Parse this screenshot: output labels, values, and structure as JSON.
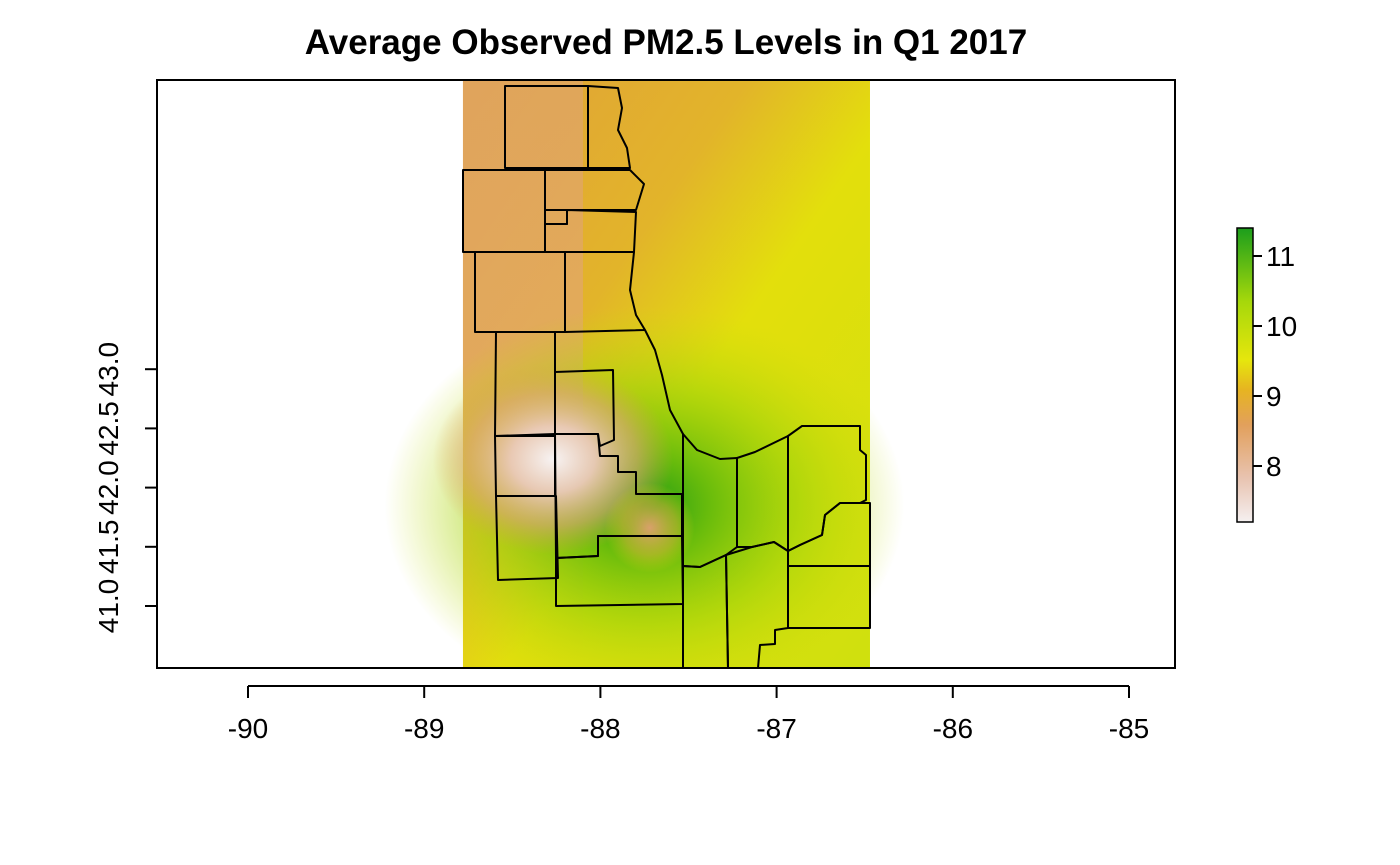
{
  "chart_data": {
    "type": "heatmap",
    "title": "Average Observed PM2.5 Levels in Q1 2017",
    "xlabel": "",
    "ylabel": "",
    "xlim": [
      -90.5,
      -84.75
    ],
    "ylim": [
      40.75,
      43.2
    ],
    "x_ticks": [
      "-90",
      "-89",
      "-88",
      "-87",
      "-86",
      "-85"
    ],
    "x_tick_values": [
      -90,
      -89,
      -88,
      -87,
      -86,
      -85
    ],
    "y_ticks": [
      "41.0",
      "41.5",
      "42.0",
      "42.5",
      "43.0"
    ],
    "y_tick_values": [
      41.0,
      41.5,
      42.0,
      42.5,
      43.0
    ],
    "raster_extent": {
      "lon": [
        -88.78,
        -86.47
      ],
      "lat": [
        40.75,
        43.2
      ]
    },
    "legend": {
      "placement": "right",
      "range": [
        7.2,
        11.4
      ],
      "ticks": [
        "8",
        "9",
        "10",
        "11"
      ],
      "tick_values": [
        8,
        9,
        10,
        11
      ],
      "colors": [
        "#f2f2f2",
        "#e8c3b0",
        "#e2a05c",
        "#e6b421",
        "#e6e60d",
        "#a6d80b",
        "#1c9e1c"
      ]
    },
    "grid": false,
    "hotspots": [
      {
        "kind": "max",
        "lon": -87.75,
        "lat": 41.85,
        "value": 11.3
      },
      {
        "kind": "min",
        "lon": -88.27,
        "lat": 42.24,
        "value": 7.2
      },
      {
        "kind": "local-low",
        "lon": -87.72,
        "lat": 41.66,
        "value": 8.4
      }
    ]
  }
}
